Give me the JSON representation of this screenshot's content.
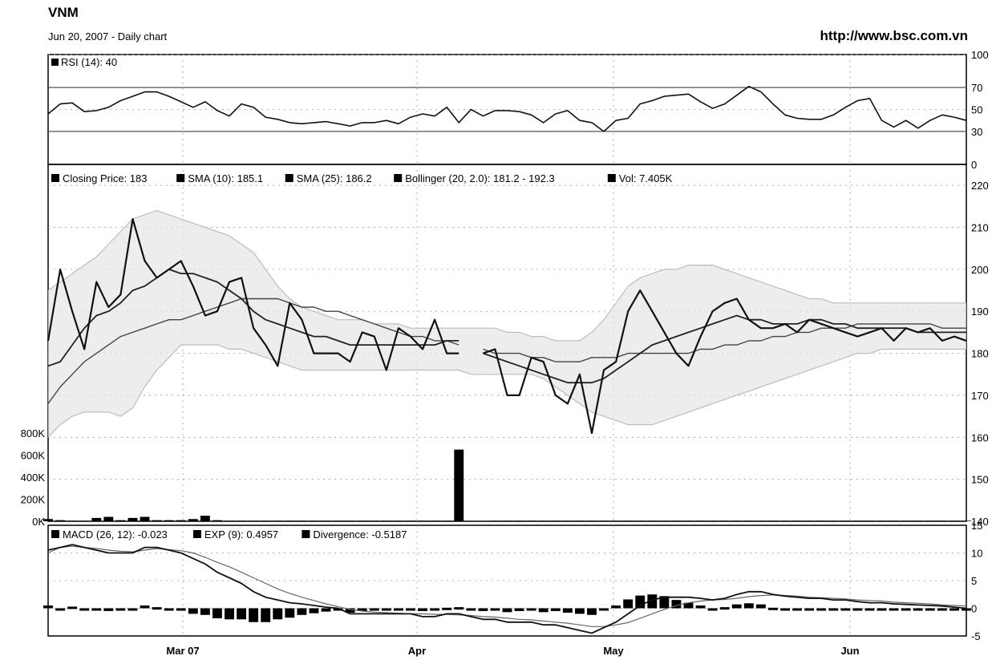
{
  "header": {
    "symbol": "VNM",
    "subtitle": "Jun 20, 2007 - Daily chart",
    "url": "http://www.bsc.com.vn"
  },
  "colors": {
    "price": "#111111",
    "sma10": "#222222",
    "sma25": "#444444",
    "bollinger": "#bdbdbd",
    "volume": "#000000",
    "grid": "#9a9a9a"
  },
  "chart_data": [
    {
      "type": "line",
      "title": "RSI (14): 40",
      "ylim": [
        0,
        100
      ],
      "y_ticks": [
        "100",
        "70",
        "50",
        "30",
        "0"
      ],
      "y_tick_values": [
        100,
        70,
        50,
        30,
        0
      ],
      "reference_lines": [
        70,
        30
      ],
      "x_ticks": [
        "Mar 07",
        "Apr",
        "May",
        "Jun"
      ],
      "series": [
        {
          "name": "RSI (14)",
          "values": [
            46,
            55,
            56,
            48,
            49,
            52,
            58,
            62,
            66,
            66,
            62,
            57,
            52,
            57,
            49,
            44,
            55,
            52,
            43,
            41,
            38,
            37,
            38,
            39,
            37,
            35,
            38,
            38,
            40,
            37,
            43,
            46,
            44,
            52,
            38,
            50,
            44,
            49,
            49,
            48,
            45,
            38,
            46,
            49,
            40,
            38,
            30,
            40,
            42,
            55,
            58,
            62,
            63,
            64,
            57,
            51,
            55,
            63,
            71,
            66,
            55,
            45,
            42,
            41,
            41,
            45,
            52,
            58,
            60,
            40,
            34,
            40,
            33,
            40,
            45,
            43,
            40
          ]
        }
      ]
    },
    {
      "type": "line",
      "title": "",
      "ylim": [
        140,
        225
      ],
      "y_ticks": [
        "220",
        "210",
        "200",
        "190",
        "180",
        "170",
        "160",
        "150",
        "140"
      ],
      "y_tick_values": [
        220,
        210,
        200,
        190,
        180,
        170,
        160,
        150,
        140
      ],
      "x_ticks": [
        "Mar 07",
        "Apr",
        "May",
        "Jun"
      ],
      "legend": [
        "Closing Price: 183",
        "SMA (10): 185.1",
        "SMA (25): 186.2",
        "Bollinger (20, 2.0): 181.2 - 192.3",
        "Vol: 7.405K"
      ],
      "legend_position": "top-left",
      "series": [
        {
          "name": "Closing Price",
          "values": [
            183,
            200,
            190,
            181,
            197,
            191,
            194,
            212,
            202,
            198,
            200,
            202,
            196,
            189,
            190,
            197,
            198,
            186,
            182,
            177,
            192,
            188,
            180,
            180,
            180,
            178,
            185,
            184,
            176,
            186,
            184,
            181,
            188,
            180,
            180,
            null,
            180,
            181,
            170,
            170,
            179,
            178,
            170,
            168,
            175,
            161,
            176,
            178,
            190,
            195,
            190,
            185,
            180,
            177,
            184,
            190,
            192,
            193,
            188,
            186,
            186,
            187,
            185,
            188,
            187,
            186,
            185,
            184,
            185,
            186,
            183,
            186,
            185,
            186,
            183,
            184,
            183
          ]
        },
        {
          "name": "SMA (10)",
          "values": [
            177,
            178,
            182,
            186,
            189,
            190,
            192,
            195,
            196,
            198,
            200,
            199,
            199,
            198,
            197,
            195,
            193,
            190,
            188,
            187,
            186,
            185,
            184,
            184,
            183,
            182,
            182,
            182,
            182,
            182,
            182,
            182,
            182,
            183,
            183,
            null,
            180,
            179,
            178,
            177,
            176,
            175,
            174,
            173,
            173,
            173,
            174,
            176,
            178,
            180,
            182,
            183,
            184,
            185,
            186,
            187,
            188,
            189,
            188,
            188,
            187,
            187,
            187,
            188,
            188,
            187,
            187,
            186,
            186,
            186,
            186,
            186,
            185,
            185,
            185,
            185,
            185
          ]
        },
        {
          "name": "SMA (25)",
          "values": [
            168,
            172,
            175,
            178,
            180,
            182,
            184,
            185,
            186,
            187,
            188,
            188,
            189,
            190,
            191,
            192,
            193,
            193,
            193,
            193,
            192,
            191,
            191,
            190,
            190,
            189,
            188,
            187,
            186,
            185,
            184,
            184,
            183,
            183,
            182,
            null,
            181,
            180,
            180,
            180,
            179,
            179,
            178,
            178,
            178,
            179,
            179,
            179,
            180,
            180,
            180,
            180,
            180,
            180,
            181,
            181,
            182,
            182,
            183,
            183,
            184,
            184,
            185,
            185,
            186,
            186,
            186,
            187,
            187,
            187,
            187,
            187,
            187,
            187,
            186,
            186,
            186
          ]
        },
        {
          "name": "Bollinger Upper",
          "values": [
            195,
            197,
            199,
            201,
            203,
            206,
            209,
            212,
            213,
            214,
            213,
            212,
            211,
            210,
            209,
            208,
            206,
            204,
            200,
            196,
            193,
            191,
            190,
            189,
            188,
            188,
            188,
            187,
            187,
            187,
            186,
            186,
            186,
            186,
            186,
            186,
            186,
            186,
            185,
            185,
            184,
            184,
            183,
            183,
            183,
            185,
            188,
            192,
            196,
            198,
            199,
            200,
            200,
            201,
            201,
            201,
            200,
            199,
            198,
            197,
            196,
            195,
            194,
            193,
            193,
            192,
            192,
            192,
            192,
            192,
            192,
            192,
            192,
            192,
            192,
            192,
            192
          ]
        },
        {
          "name": "Bollinger Lower",
          "values": [
            160,
            163,
            165,
            166,
            166,
            166,
            165,
            167,
            172,
            176,
            179,
            182,
            182,
            182,
            182,
            181,
            181,
            180,
            179,
            178,
            177,
            176,
            176,
            176,
            176,
            176,
            176,
            176,
            176,
            176,
            176,
            176,
            176,
            176,
            176,
            175,
            175,
            175,
            175,
            175,
            175,
            174,
            172,
            170,
            168,
            166,
            165,
            164,
            163,
            163,
            163,
            164,
            165,
            166,
            167,
            168,
            169,
            170,
            171,
            172,
            173,
            174,
            175,
            176,
            177,
            178,
            179,
            180,
            180,
            181,
            181,
            181,
            181,
            181,
            181,
            181,
            181
          ]
        },
        {
          "name": "Vol",
          "values": [
            20,
            10,
            5,
            5,
            30,
            40,
            10,
            30,
            40,
            10,
            10,
            10,
            20,
            50,
            10,
            5,
            5,
            5,
            5,
            5,
            5,
            5,
            5,
            5,
            5,
            5,
            5,
            5,
            5,
            5,
            5,
            5,
            5,
            5,
            650,
            null,
            null,
            5,
            5,
            5,
            5,
            5,
            5,
            5,
            5,
            5,
            5,
            5,
            5,
            5,
            5,
            5,
            5,
            5,
            5,
            5,
            5,
            5,
            5,
            5,
            5,
            5,
            5,
            5,
            5,
            5,
            5,
            5,
            5,
            5,
            5,
            5,
            5,
            5,
            5,
            5,
            5
          ]
        }
      ],
      "volume_axis": {
        "ylim": [
          0,
          900
        ],
        "y_ticks": [
          "800K",
          "600K",
          "400K",
          "200K",
          "0K"
        ],
        "y_tick_values": [
          800,
          600,
          400,
          200,
          0
        ],
        "unit": "K"
      }
    },
    {
      "type": "line",
      "title": "",
      "ylim": [
        -5,
        15
      ],
      "y_ticks": [
        "15",
        "10",
        "5",
        "0",
        "-5"
      ],
      "y_tick_values": [
        15,
        10,
        5,
        0,
        -5
      ],
      "x_ticks": [
        "Mar 07",
        "Apr",
        "May",
        "Jun"
      ],
      "legend": [
        "MACD (26, 12): -0.023",
        "EXP (9): 0.4957",
        "Divergence: -0.5187"
      ],
      "legend_position": "top-left",
      "series": [
        {
          "name": "MACD (26, 12)",
          "values": [
            10.5,
            11,
            11.5,
            11,
            10.5,
            10,
            10,
            10,
            11,
            11,
            10.5,
            10,
            9,
            8,
            6.5,
            5.5,
            4.5,
            3,
            2,
            1.5,
            1,
            0.8,
            0.5,
            0.2,
            0,
            -1,
            -1,
            -1,
            -1,
            -1,
            -1,
            -1.5,
            -1.5,
            -1,
            -1,
            -1.5,
            -2,
            -2,
            -2.5,
            -2.5,
            -2.5,
            -3,
            -3,
            -3.5,
            -4,
            -4.5,
            -3.5,
            -2.5,
            -1,
            0.5,
            1.5,
            2,
            2,
            2,
            1.8,
            1.5,
            1.8,
            2.5,
            3,
            3,
            2.5,
            2.2,
            2,
            1.8,
            1.8,
            1.5,
            1.5,
            1.2,
            1,
            1,
            0.8,
            0.7,
            0.6,
            0.5,
            0.4,
            0.2,
            0
          ]
        },
        {
          "name": "EXP (9)",
          "values": [
            10,
            11,
            11.2,
            11,
            10.8,
            10.5,
            10.3,
            10.2,
            10.5,
            10.8,
            10.6,
            10.4,
            10,
            9.2,
            8.3,
            7.5,
            6.5,
            5.5,
            4.5,
            3.5,
            2.7,
            2,
            1.4,
            0.8,
            0.3,
            -0.2,
            -0.5,
            -0.7,
            -0.8,
            -0.9,
            -1,
            -1,
            -1.1,
            -1.1,
            -1.2,
            -1.3,
            -1.5,
            -1.6,
            -1.8,
            -2,
            -2.1,
            -2.3,
            -2.5,
            -2.7,
            -3,
            -3.3,
            -3.3,
            -3,
            -2.6,
            -1.8,
            -1,
            -0.2,
            0.5,
            1,
            1.3,
            1.5,
            1.6,
            1.8,
            2.1,
            2.3,
            2.4,
            2.3,
            2.2,
            2,
            1.9,
            1.8,
            1.7,
            1.5,
            1.4,
            1.3,
            1.1,
            1,
            0.9,
            0.8,
            0.6,
            0.5,
            0.4
          ]
        },
        {
          "name": "Divergence",
          "values": [
            0.5,
            0,
            0.3,
            0,
            -0.3,
            -0.5,
            -0.3,
            -0.2,
            0.5,
            0.2,
            -0.1,
            -0.4,
            -1,
            -1.2,
            -1.8,
            -2,
            -2,
            -2.5,
            -2.5,
            -2,
            -1.7,
            -1.2,
            -0.9,
            -0.6,
            -0.3,
            -0.8,
            -0.5,
            -0.3,
            -0.2,
            -0.1,
            0,
            -0.5,
            -0.4,
            0.1,
            0.2,
            -0.2,
            -0.5,
            -0.4,
            -0.7,
            -0.5,
            -0.4,
            -0.7,
            -0.5,
            -0.8,
            -1,
            -1.2,
            -0.2,
            0.5,
            1.6,
            2.3,
            2.5,
            2.2,
            1.5,
            1,
            0.5,
            0,
            0.2,
            0.7,
            0.9,
            0.7,
            0.1,
            -0.1,
            -0.2,
            -0.2,
            -0.1,
            -0.3,
            -0.2,
            -0.3,
            -0.4,
            -0.3,
            -0.3,
            -0.3,
            -0.3,
            -0.3,
            -0.2,
            -0.3,
            -0.4
          ]
        }
      ]
    }
  ]
}
